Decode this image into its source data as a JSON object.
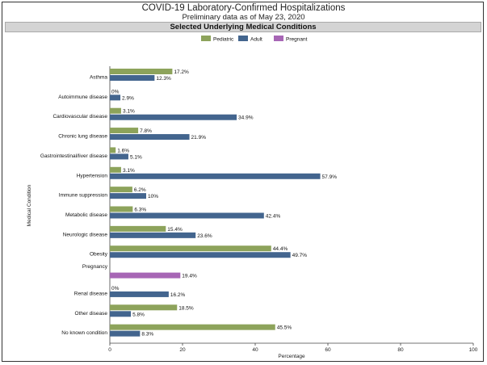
{
  "header": {
    "title": "COVID-19 Laboratory-Confirmed Hospitalizations",
    "subtitle": "Preliminary data as of May 23, 2020",
    "section_title": "Selected Underlying Medical Conditions"
  },
  "colors": {
    "pediatric": "#8da35b",
    "adult": "#43658e",
    "pregnant": "#a766b5"
  },
  "chart_data": {
    "type": "bar",
    "orientation": "horizontal",
    "title": "Selected Underlying Medical Conditions",
    "xlabel": "Percentage",
    "ylabel": "Medical Condition",
    "xlim": [
      0,
      100
    ],
    "xticks": [
      0,
      20,
      40,
      60,
      80,
      100
    ],
    "legend": {
      "placement": "top-center",
      "entries": [
        "Pediatric",
        "Adult",
        "Pregnant"
      ]
    },
    "categories": [
      "Asthma",
      "Autoimmune disease",
      "Cardiovascular disease",
      "Chronic lung disease",
      "Gastrointestinal/liver disease",
      "Hypertension",
      "Immune suppression",
      "Metabolic disease",
      "Neurologic disease",
      "Obesity",
      "Pregnancy",
      "Renal disease",
      "Other disease",
      "No known condition"
    ],
    "series": [
      {
        "name": "Pediatric",
        "values": [
          17.2,
          0,
          3.1,
          7.8,
          1.6,
          3.1,
          6.2,
          6.3,
          15.4,
          44.4,
          null,
          0,
          18.5,
          45.5
        ],
        "labels": [
          "17.2%",
          "0%",
          "3.1%",
          "7.8%",
          "1.6%",
          "3.1%",
          "6.2%",
          "6.3%",
          "15.4%",
          "44.4%",
          null,
          "0%",
          "18.5%",
          "45.5%"
        ]
      },
      {
        "name": "Adult",
        "values": [
          12.3,
          2.9,
          34.9,
          21.9,
          5.1,
          57.9,
          10,
          42.4,
          23.6,
          49.7,
          null,
          16.2,
          5.8,
          8.3
        ],
        "labels": [
          "12.3%",
          "2.9%",
          "34.9%",
          "21.9%",
          "5.1%",
          "57.9%",
          "10%",
          "42.4%",
          "23.6%",
          "49.7%",
          null,
          "16.2%",
          "5.8%",
          "8.3%"
        ]
      },
      {
        "name": "Pregnant",
        "values": [
          null,
          null,
          null,
          null,
          null,
          null,
          null,
          null,
          null,
          null,
          19.4,
          null,
          null,
          null
        ],
        "labels": [
          null,
          null,
          null,
          null,
          null,
          null,
          null,
          null,
          null,
          null,
          "19.4%",
          null,
          null,
          null
        ]
      }
    ]
  }
}
